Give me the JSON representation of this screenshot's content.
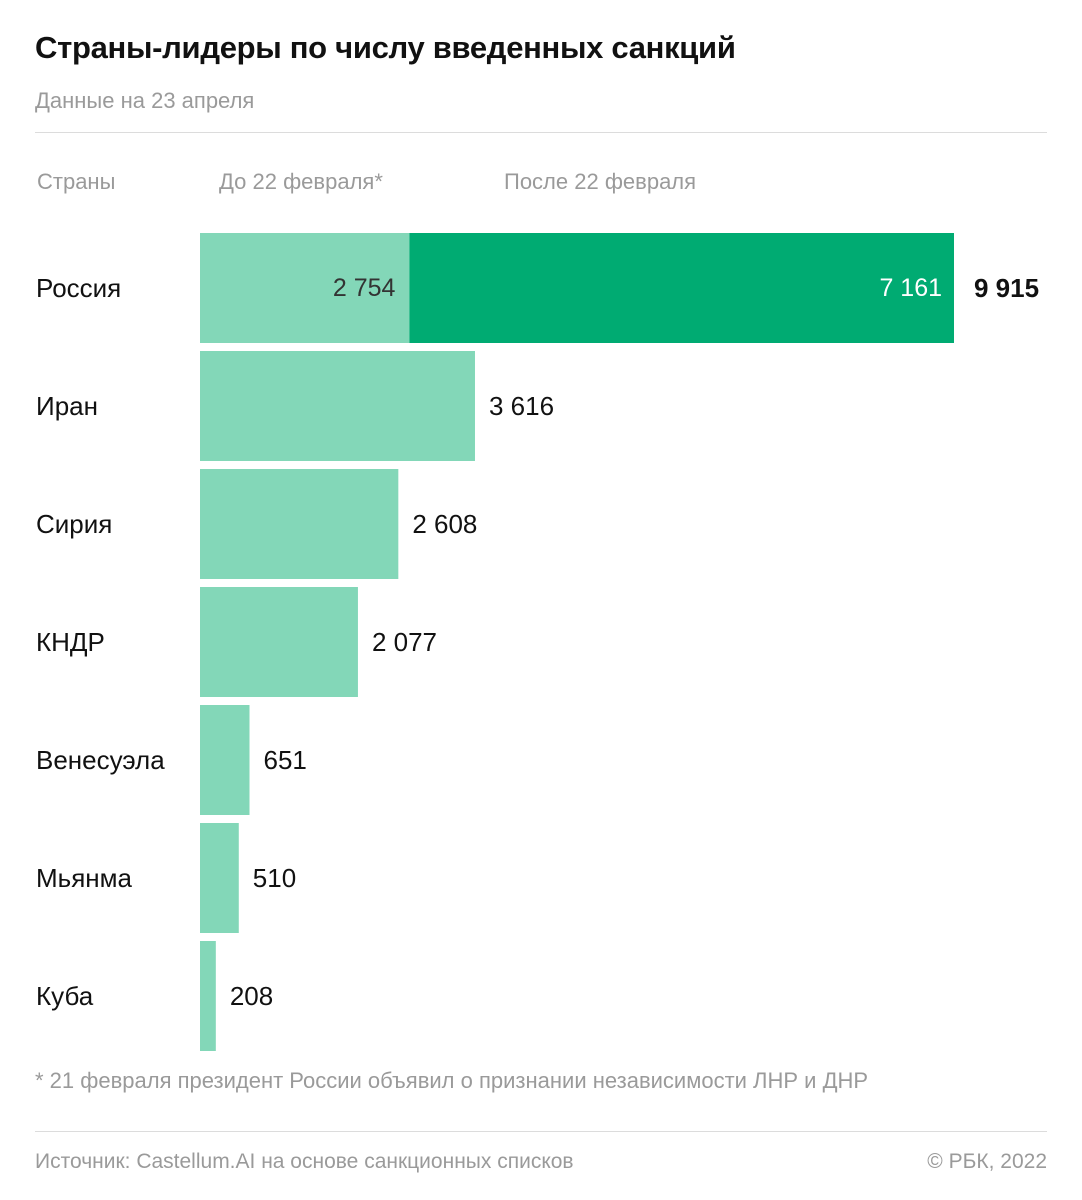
{
  "header": {
    "title": "Страны-лидеры по числу введенных санкций",
    "subtitle": "Данные на 23 апреля"
  },
  "columns": {
    "countries": "Страны",
    "before": "До 22 февраля*",
    "after": "После 22 февраля"
  },
  "colors": {
    "before": "#83d7b8",
    "after": "#00ab72",
    "label_dark": "#111111",
    "label_light": "#ffffff",
    "label_before_inside": "#333333"
  },
  "chart_data": {
    "type": "bar",
    "orientation": "horizontal",
    "stacked": true,
    "title": "Страны-лидеры по числу введенных санкций",
    "subtitle": "Данные на 23 апреля",
    "categories": [
      "Россия",
      "Иран",
      "Сирия",
      "КНДР",
      "Венесуэла",
      "Мьянма",
      "Куба"
    ],
    "series": [
      {
        "name": "До 22 февраля*",
        "values": [
          2754,
          3616,
          2608,
          2077,
          651,
          510,
          208
        ],
        "labels": [
          "2 754",
          "3 616",
          "2 608",
          "2 077",
          "651",
          "510",
          "208"
        ]
      },
      {
        "name": "После 22 февраля",
        "values": [
          7161,
          0,
          0,
          0,
          0,
          0,
          0
        ],
        "labels": [
          "7 161",
          "",
          "",
          "",
          "",
          "",
          ""
        ]
      }
    ],
    "totals": [
      9915,
      3616,
      2608,
      2077,
      651,
      510,
      208
    ],
    "total_labels": [
      "9 915",
      "",
      "",
      "",
      "",
      "",
      ""
    ],
    "xlim": [
      0,
      9915
    ],
    "grid": false,
    "legend": "top"
  },
  "footnote": "* 21 февраля президент России объявил о признании независимости ЛНР и ДНР",
  "footer": {
    "source": "Источник: Castellum.AI на основе санкционных списков",
    "copyright": "© РБК, 2022"
  }
}
